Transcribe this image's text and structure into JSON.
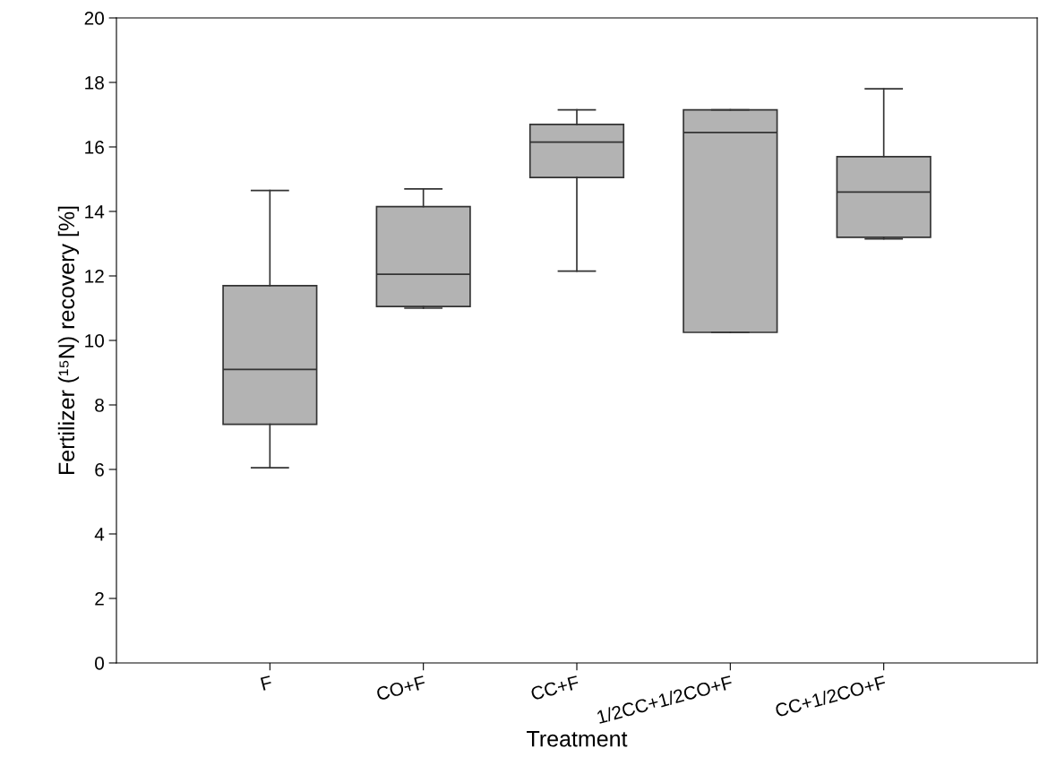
{
  "chart_data": {
    "type": "box",
    "xlabel": "Treatment",
    "ylabel": "Fertilizer (¹⁵N) recovery [%]",
    "categories": [
      "F",
      "CO+F",
      "CC+F",
      "1/2CC+1/2CO+F",
      "CC+1/2CO+F"
    ],
    "color": "#b3b3b3",
    "boxes": [
      {
        "low": 6.05,
        "q1": 7.4,
        "median": 9.1,
        "q3": 11.7,
        "high": 14.65
      },
      {
        "low": 11.0,
        "q1": 11.05,
        "median": 12.05,
        "q3": 14.15,
        "high": 14.7
      },
      {
        "low": 12.15,
        "q1": 15.05,
        "median": 16.15,
        "q3": 16.7,
        "high": 17.15
      },
      {
        "low": 10.25,
        "q1": 10.25,
        "median": 16.45,
        "q3": 17.15,
        "high": 17.15
      },
      {
        "low": 13.15,
        "q1": 13.2,
        "median": 14.6,
        "q3": 15.7,
        "high": 17.8
      }
    ],
    "ylim": [
      0,
      20
    ],
    "yticks": [
      0,
      2,
      4,
      6,
      8,
      10,
      12,
      14,
      16,
      18,
      20
    ],
    "grid": false
  }
}
